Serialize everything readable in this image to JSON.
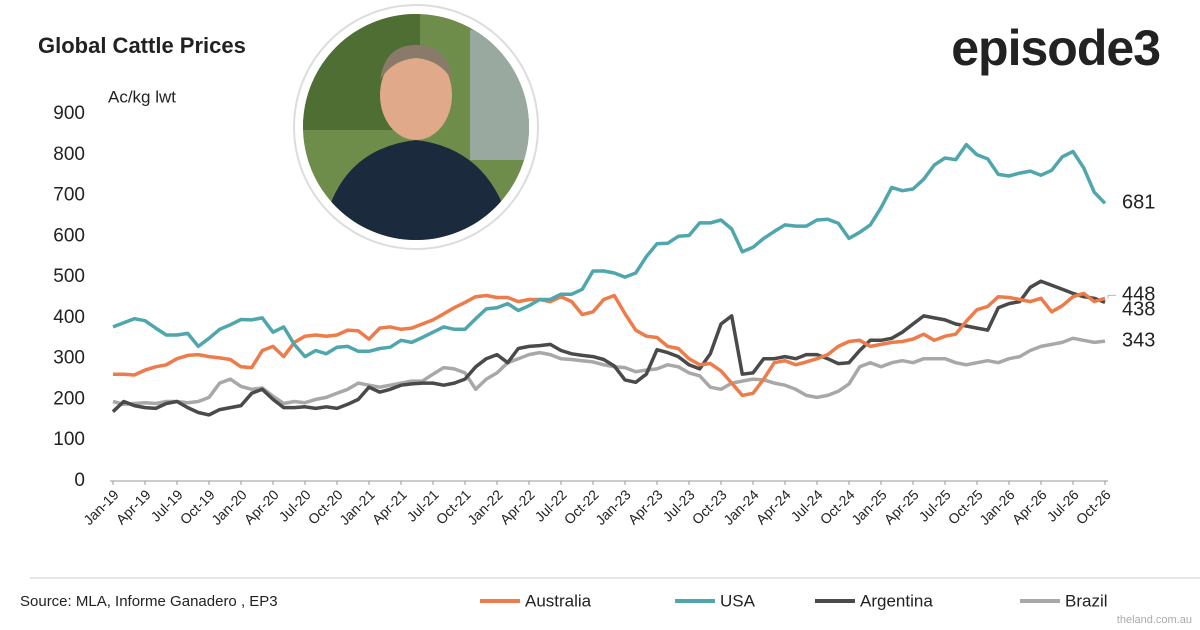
{
  "chart_data": {
    "type": "line",
    "title": "Global Cattle Prices",
    "y_label": "Ac/kg lwt",
    "brand": "episode3",
    "source": "Source:  MLA, Informe Ganadero , EP3",
    "watermark": "theland.com.au",
    "categories": [
      "Jan-19",
      null,
      null,
      "Apr-19",
      null,
      null,
      "Jul-19",
      null,
      null,
      "Oct-19",
      null,
      null,
      "Jan-20",
      null,
      null,
      "Apr-20",
      null,
      null,
      "Jul-20",
      null,
      null,
      "Oct-20",
      null,
      null,
      "Jan-21",
      null,
      null,
      "Apr-21",
      null,
      null,
      "Jul-21",
      null,
      null,
      "Oct-21",
      null,
      null,
      "Jan-22",
      null,
      null,
      "Apr-22",
      null,
      null,
      "Jul-22",
      null,
      null,
      "Oct-22",
      null,
      null,
      "Jan-23",
      null,
      null,
      "Apr-23",
      null,
      null,
      "Jul-23",
      null,
      null,
      "Oct-23",
      null,
      null,
      "Jan-24",
      null,
      null,
      "Apr-24",
      null,
      null,
      "Jul-24",
      null,
      null,
      "Oct-24",
      null,
      null,
      "Jan-25",
      null,
      null,
      "Apr-25",
      null,
      null,
      "Jul-25",
      null,
      null,
      "Oct-25",
      null,
      null,
      "Jan-26",
      null,
      null,
      "Apr-26",
      null,
      null,
      "Jul-26",
      null,
      null,
      "Oct-26"
    ],
    "series": [
      {
        "name": "Australia",
        "color": "#ee7b4a",
        "values": [
          262,
          262,
          260,
          272,
          280,
          285,
          300,
          308,
          310,
          305,
          302,
          298,
          280,
          278,
          320,
          330,
          305,
          340,
          355,
          358,
          355,
          358,
          370,
          368,
          348,
          375,
          378,
          372,
          375,
          385,
          395,
          410,
          425,
          438,
          452,
          455,
          450,
          450,
          440,
          445,
          445,
          440,
          452,
          440,
          408,
          415,
          445,
          455,
          410,
          370,
          355,
          352,
          330,
          325,
          300,
          285,
          288,
          270,
          240,
          210,
          215,
          250,
          290,
          295,
          285,
          292,
          300,
          310,
          330,
          342,
          345,
          330,
          335,
          340,
          342,
          348,
          360,
          345,
          355,
          360,
          392,
          420,
          428,
          452,
          450,
          445,
          440,
          448,
          415,
          430,
          452,
          460,
          440,
          448
        ]
      },
      {
        "name": "USA",
        "color": "#4fa6ad",
        "values": [
          378,
          388,
          398,
          393,
          375,
          358,
          358,
          362,
          330,
          350,
          372,
          383,
          396,
          395,
          400,
          365,
          378,
          335,
          305,
          320,
          312,
          328,
          330,
          318,
          318,
          325,
          328,
          345,
          340,
          352,
          365,
          378,
          372,
          372,
          398,
          422,
          425,
          435,
          418,
          430,
          445,
          445,
          458,
          458,
          470,
          515,
          515,
          510,
          500,
          510,
          550,
          582,
          583,
          600,
          602,
          633,
          633,
          640,
          618,
          562,
          573,
          595,
          612,
          628,
          625,
          625,
          640,
          642,
          632,
          595,
          610,
          628,
          670,
          720,
          712,
          716,
          740,
          775,
          792,
          788,
          825,
          800,
          790,
          752,
          748,
          755,
          760,
          750,
          762,
          795,
          808,
          768,
          708,
          681
        ]
      },
      {
        "name": "Argentina",
        "color": "#4a4a4a",
        "values": [
          170,
          195,
          185,
          180,
          178,
          190,
          195,
          180,
          168,
          162,
          175,
          180,
          185,
          215,
          225,
          200,
          180,
          180,
          182,
          178,
          182,
          178,
          188,
          200,
          230,
          218,
          225,
          235,
          238,
          240,
          240,
          235,
          240,
          250,
          280,
          300,
          310,
          290,
          325,
          330,
          332,
          335,
          320,
          312,
          308,
          305,
          298,
          282,
          248,
          242,
          262,
          322,
          315,
          305,
          285,
          275,
          312,
          385,
          405,
          262,
          265,
          300,
          300,
          305,
          300,
          310,
          310,
          300,
          288,
          290,
          320,
          345,
          345,
          350,
          365,
          385,
          405,
          400,
          395,
          385,
          380,
          375,
          370,
          425,
          435,
          440,
          475,
          490,
          480,
          470,
          460,
          452,
          448,
          438
        ]
      },
      {
        "name": "Brazil",
        "color": "#a8a8a8",
        "values": [
          195,
          188,
          190,
          192,
          190,
          195,
          195,
          192,
          195,
          205,
          240,
          250,
          232,
          225,
          228,
          208,
          190,
          195,
          192,
          200,
          205,
          215,
          225,
          240,
          235,
          230,
          235,
          240,
          245,
          245,
          262,
          278,
          275,
          265,
          225,
          250,
          265,
          290,
          300,
          310,
          315,
          310,
          300,
          298,
          295,
          292,
          285,
          280,
          278,
          268,
          272,
          275,
          285,
          280,
          265,
          258,
          230,
          225,
          240,
          245,
          250,
          248,
          240,
          235,
          225,
          210,
          205,
          210,
          220,
          238,
          280,
          290,
          280,
          290,
          295,
          290,
          300,
          300,
          300,
          290,
          285,
          290,
          295,
          290,
          300,
          305,
          320,
          330,
          335,
          340,
          350,
          345,
          340,
          343
        ]
      }
    ],
    "ylim": [
      0,
      900
    ],
    "yticks": [
      0,
      100,
      200,
      300,
      400,
      500,
      600,
      700,
      800,
      900
    ],
    "grid": false
  }
}
